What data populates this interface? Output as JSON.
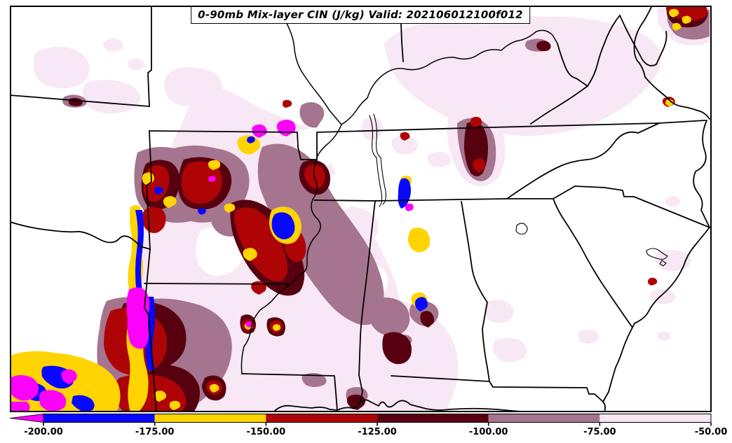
{
  "window": {
    "background": "#ffffff",
    "map_line_color": "#000000"
  },
  "title_box": {
    "text": "0-90mb Mix-layer CIN (J/kg) Valid: 202106012100f012"
  },
  "chart_data": {
    "type": "heatmap",
    "variant": "filled contour weather map over US state outlines",
    "title": "0-90mb Mix-layer CIN (J/kg) Valid: 202106012100f012",
    "parameter": "0-90mb Mix-layer CIN",
    "units": "J/kg",
    "valid_label": "Valid: 202106012100f012",
    "grid": false,
    "colorbar": {
      "orientation": "horizontal",
      "position": "bottom",
      "tick_labels": [
        "-200.00",
        "-175.00",
        "-150.00",
        "-125.00",
        "-100.00",
        "-75.00",
        "-50.00"
      ],
      "under_range": {
        "shape": "left-arrow",
        "color": "#fb02fb",
        "meaning": "below -200"
      },
      "bins": [
        {
          "from": -200,
          "to": -175,
          "color": "#0808ff"
        },
        {
          "from": -175,
          "to": -150,
          "color": "#ffd400"
        },
        {
          "from": -150,
          "to": -125,
          "color": "#ae0405"
        },
        {
          "from": -125,
          "to": -100,
          "color": "#560010"
        },
        {
          "from": -100,
          "to": -75,
          "color": "#a5748e"
        },
        {
          "from": -75,
          "to": -50,
          "color": "#f8e7f4"
        }
      ]
    },
    "map": {
      "region_shown": "south-central and southeastern United States (Kansas/Missouri east to the Carolinas, Gulf Coast north to the Ohio River)",
      "background": "#ffffff",
      "no_shading_meaning": "CIN weaker than -50 J/kg (white)",
      "strongest_cin_corridor": "east Texas / Louisiana / Arkansas along and west of the lower Mississippi River (values below -200 J/kg in magenta)",
      "secondary_maxima": "northwest Arkansas cluster, central Tennessee spot, far northeast map corner",
      "weak_shading_areas": "pale pink (-75 to -50) across Kansas, Missouri, Kentucky/Virginia, Tennessee, Mississippi/Alabama and Georgia"
    }
  }
}
